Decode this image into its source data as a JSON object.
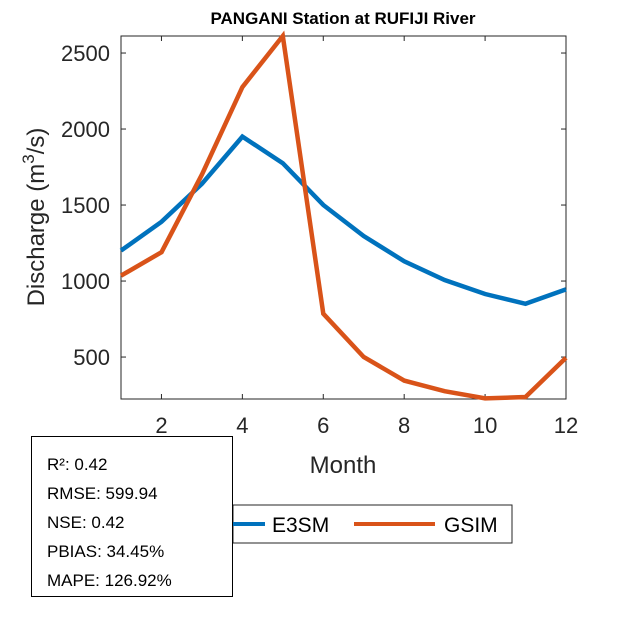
{
  "chart_data": {
    "type": "line",
    "title": "PANGANI  Station at  RUFIJI  River",
    "xlabel": "Month",
    "ylabel": "Discharge (m³/s)",
    "ylabel_parts": {
      "pre": "Discharge (m",
      "sup": "3",
      "post": "/s)"
    },
    "xlim": [
      1,
      12
    ],
    "ylim": [
      224,
      2612
    ],
    "xticks": [
      2,
      4,
      6,
      8,
      10,
      12
    ],
    "yticks": [
      500,
      1000,
      1500,
      2000,
      2500
    ],
    "x": [
      1,
      2,
      3,
      4,
      5,
      6,
      7,
      8,
      9,
      10,
      11,
      12
    ],
    "series": [
      {
        "name": "E3SM",
        "color": "#0072BD",
        "values": [
          1200,
          1390,
          1640,
          1950,
          1775,
          1500,
          1296,
          1130,
          1007,
          915,
          850,
          945
        ]
      },
      {
        "name": "GSIM",
        "color": "#D95319",
        "values": [
          1035,
          1190,
          1700,
          2276,
          2612,
          785,
          500,
          345,
          275,
          228,
          237,
          495
        ]
      }
    ],
    "legend": {
      "location": "bottom",
      "orientation": "horizontal",
      "entries": [
        "E3SM",
        "GSIM"
      ]
    },
    "grid": false
  },
  "stats": {
    "lines": [
      "R²: 0.42",
      "RMSE: 599.94",
      "NSE: 0.42",
      "PBIAS: 34.45%",
      "MAPE: 126.92%"
    ]
  }
}
